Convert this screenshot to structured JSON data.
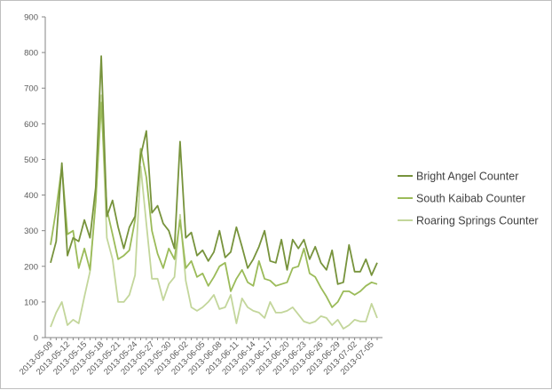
{
  "chart_data": {
    "type": "line",
    "title": "",
    "xlabel": "",
    "ylabel": "",
    "ylim": [
      0,
      900
    ],
    "yticks": [
      0,
      100,
      200,
      300,
      400,
      500,
      600,
      700,
      800,
      900
    ],
    "grid": false,
    "legend_position": "right",
    "x_tick_labels": [
      "2013-05-09",
      "2013-05-12",
      "2013-05-15",
      "2013-05-18",
      "2013-05-21",
      "2013-05-24",
      "2013-05-27",
      "2013-05-30",
      "2013-06-02",
      "2013-06-05",
      "2013-06-08",
      "2013-06-11",
      "2013-06-14",
      "2013-06-17",
      "2013-06-20",
      "2013-06-23",
      "2013-06-26",
      "2013-06-29",
      "2013-07-02",
      "2013-07-05"
    ],
    "x": [
      "2013-05-09",
      "2013-05-10",
      "2013-05-11",
      "2013-05-12",
      "2013-05-13",
      "2013-05-14",
      "2013-05-15",
      "2013-05-16",
      "2013-05-17",
      "2013-05-18",
      "2013-05-19",
      "2013-05-20",
      "2013-05-21",
      "2013-05-22",
      "2013-05-23",
      "2013-05-24",
      "2013-05-25",
      "2013-05-26",
      "2013-05-27",
      "2013-05-28",
      "2013-05-29",
      "2013-05-30",
      "2013-05-31",
      "2013-06-01",
      "2013-06-02",
      "2013-06-03",
      "2013-06-04",
      "2013-06-05",
      "2013-06-06",
      "2013-06-07",
      "2013-06-08",
      "2013-06-09",
      "2013-06-10",
      "2013-06-11",
      "2013-06-12",
      "2013-06-13",
      "2013-06-14",
      "2013-06-15",
      "2013-06-16",
      "2013-06-17",
      "2013-06-18",
      "2013-06-19",
      "2013-06-20",
      "2013-06-21",
      "2013-06-22",
      "2013-06-23",
      "2013-06-24",
      "2013-06-25",
      "2013-06-26",
      "2013-06-27",
      "2013-06-28",
      "2013-06-29",
      "2013-06-30",
      "2013-07-01",
      "2013-07-02",
      "2013-07-03",
      "2013-07-04",
      "2013-07-05",
      "2013-07-06"
    ],
    "series": [
      {
        "name": "Bright Angel Counter",
        "color": "#77933c",
        "values": [
          210,
          270,
          490,
          230,
          280,
          270,
          330,
          280,
          420,
          790,
          340,
          385,
          310,
          250,
          310,
          340,
          510,
          580,
          350,
          370,
          320,
          300,
          250,
          550,
          280,
          295,
          230,
          245,
          215,
          240,
          300,
          225,
          240,
          310,
          255,
          195,
          220,
          255,
          300,
          215,
          210,
          275,
          190,
          275,
          250,
          275,
          220,
          255,
          210,
          190,
          245,
          150,
          155,
          260,
          185,
          185,
          220,
          175,
          210
        ]
      },
      {
        "name": "South Kaibab Counter",
        "color": "#9bbb59",
        "values": [
          260,
          360,
          480,
          290,
          300,
          195,
          250,
          190,
          380,
          660,
          360,
          290,
          220,
          230,
          245,
          330,
          530,
          450,
          300,
          235,
          195,
          250,
          220,
          330,
          195,
          215,
          170,
          180,
          145,
          170,
          200,
          210,
          130,
          165,
          190,
          155,
          145,
          215,
          165,
          160,
          145,
          150,
          155,
          195,
          200,
          250,
          180,
          170,
          140,
          115,
          85,
          100,
          130,
          130,
          120,
          130,
          145,
          155,
          150
        ]
      },
      {
        "name": "Roaring Springs Counter",
        "color": "#c3d69b",
        "values": [
          30,
          70,
          100,
          35,
          50,
          40,
          115,
          185,
          380,
          680,
          280,
          220,
          100,
          100,
          120,
          175,
          480,
          320,
          165,
          165,
          105,
          150,
          170,
          345,
          160,
          85,
          75,
          85,
          100,
          120,
          80,
          85,
          120,
          40,
          110,
          85,
          75,
          70,
          55,
          100,
          70,
          70,
          75,
          85,
          65,
          45,
          40,
          45,
          60,
          55,
          35,
          50,
          25,
          35,
          50,
          45,
          45,
          95,
          55
        ]
      }
    ]
  }
}
